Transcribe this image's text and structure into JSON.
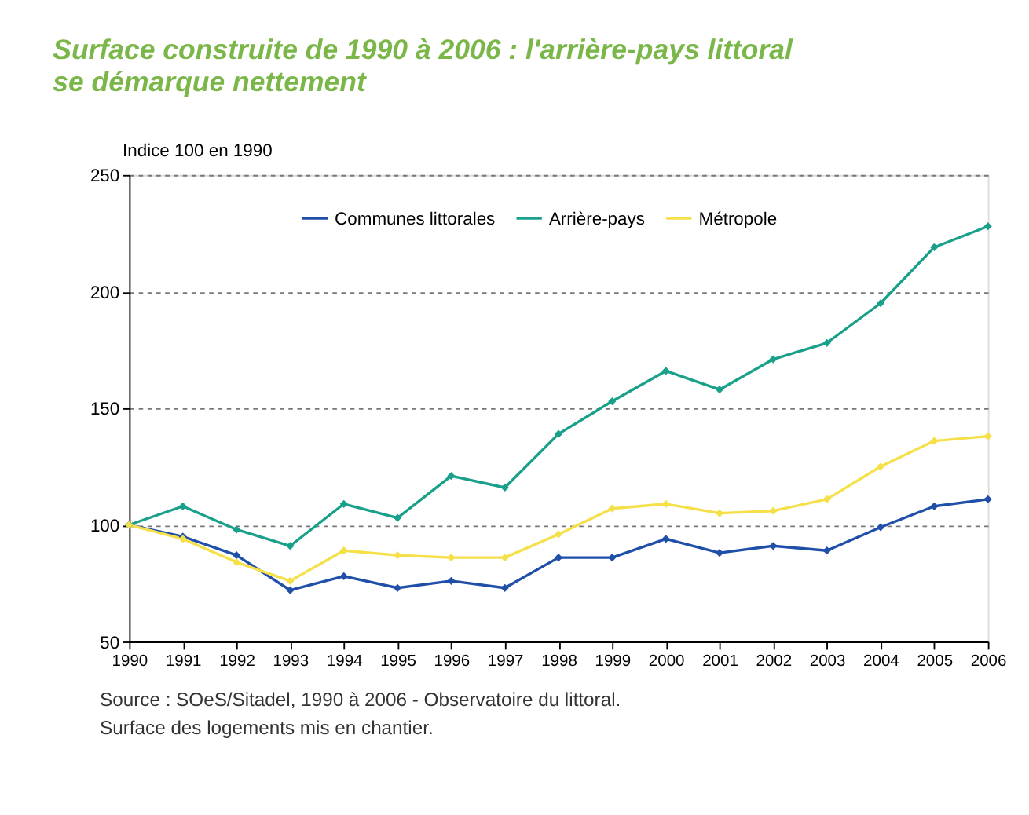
{
  "chart_data": {
    "type": "line",
    "title": "Surface construite de 1990 à 2006 : l'arrière-pays littoral se démarque nettement",
    "ylabel": "Indice 100 en 1990",
    "x": [
      1990,
      1991,
      1992,
      1993,
      1994,
      1995,
      1996,
      1997,
      1998,
      1999,
      2000,
      2001,
      2002,
      2003,
      2004,
      2005,
      2006
    ],
    "series": [
      {
        "name": "Communes littorales",
        "color": "#1f4fa8",
        "values": [
          100,
          95,
          87,
          72,
          78,
          73,
          76,
          73,
          86,
          86,
          94,
          88,
          91,
          89,
          99,
          108,
          111
        ]
      },
      {
        "name": "Arrière-pays",
        "color": "#18a08a",
        "values": [
          100,
          108,
          98,
          91,
          109,
          103,
          121,
          116,
          139,
          153,
          166,
          158,
          171,
          178,
          195,
          219,
          228
        ]
      },
      {
        "name": "Métropole",
        "color": "#f5e04a",
        "values": [
          100,
          94,
          84,
          76,
          89,
          87,
          86,
          86,
          96,
          107,
          109,
          105,
          106,
          111,
          125,
          136,
          138
        ]
      }
    ],
    "xlim": [
      1990,
      2006
    ],
    "xticks": [
      1990,
      1991,
      1992,
      1993,
      1994,
      1995,
      1996,
      1997,
      1998,
      1999,
      2000,
      2001,
      2002,
      2003,
      2004,
      2005,
      2006
    ],
    "ylim": [
      50,
      250
    ],
    "yticks": [
      50,
      100,
      150,
      200,
      250
    ],
    "grid": "y",
    "legend": "top",
    "marker": "diamond",
    "line_style": "solid",
    "annotations": [
      "Source : SOeS/Sitadel, 1990 à 2006 - Observatoire du littoral.",
      "Surface des logements mis en chantier."
    ]
  }
}
